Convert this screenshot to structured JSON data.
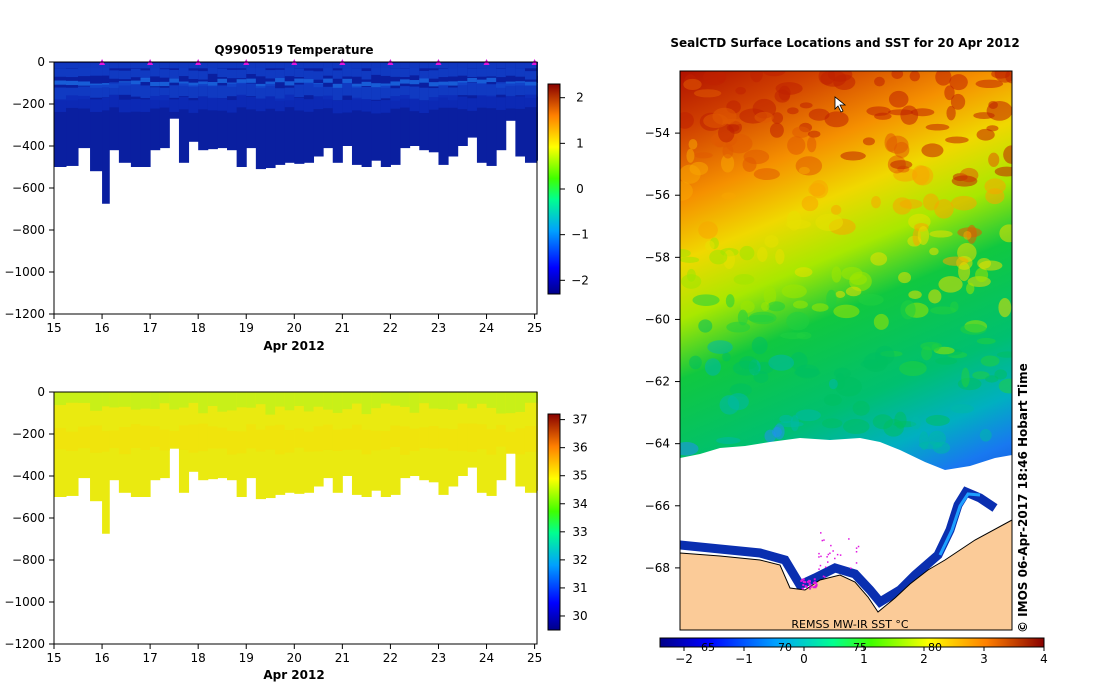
{
  "chart_data": [
    {
      "type": "heatmap",
      "title": "Q9900519  Temperature",
      "xlabel": "Apr 2012",
      "ylabel": "",
      "x_ticks": [
        "15",
        "16",
        "17",
        "18",
        "19",
        "20",
        "21",
        "22",
        "23",
        "24",
        "25"
      ],
      "y_ticks": [
        "0",
        "−200",
        "−400",
        "−600",
        "−800",
        "−1000",
        "−1200"
      ],
      "xlim": [
        15,
        25.05
      ],
      "ylim": [
        -1200,
        0
      ],
      "profile_times": [
        15.0,
        15.25,
        15.5,
        15.75,
        16.0,
        16.15,
        16.35,
        16.6,
        16.8,
        17.0,
        17.2,
        17.4,
        17.6,
        17.8,
        18.0,
        18.2,
        18.4,
        18.6,
        18.8,
        19.0,
        19.2,
        19.4,
        19.6,
        19.8,
        20.0,
        20.2,
        20.4,
        20.6,
        20.8,
        21.0,
        21.2,
        21.4,
        21.6,
        21.8,
        22.0,
        22.2,
        22.4,
        22.6,
        22.8,
        23.0,
        23.2,
        23.4,
        23.6,
        23.8,
        24.0,
        24.2,
        24.4,
        24.6,
        24.8,
        25.05
      ],
      "max_depths": [
        500,
        495,
        410,
        520,
        675,
        420,
        480,
        500,
        500,
        420,
        410,
        270,
        480,
        380,
        420,
        415,
        410,
        420,
        500,
        410,
        510,
        505,
        490,
        480,
        485,
        480,
        450,
        410,
        480,
        400,
        490,
        500,
        470,
        500,
        490,
        410,
        400,
        420,
        430,
        490,
        450,
        400,
        360,
        480,
        495,
        420,
        280,
        450,
        480,
        470
      ],
      "surface_markers": [
        16,
        17,
        18,
        19,
        20,
        21,
        22,
        23,
        24,
        25
      ],
      "colorbar": {
        "label": "",
        "ticks": [
          "2",
          "1",
          "0",
          "−1",
          "−2"
        ],
        "min": -2.3,
        "max": 2.3
      }
    },
    {
      "type": "heatmap",
      "title": "",
      "xlabel": "Apr 2012",
      "ylabel": "",
      "x_ticks": [
        "15",
        "16",
        "17",
        "18",
        "19",
        "20",
        "21",
        "22",
        "23",
        "24",
        "25"
      ],
      "y_ticks": [
        "0",
        "−200",
        "−400",
        "−600",
        "−800",
        "−1000",
        "−1200"
      ],
      "xlim": [
        15,
        25.05
      ],
      "ylim": [
        -1200,
        0
      ],
      "values_description_range": [
        34.0,
        34.8
      ],
      "colorbar": {
        "label": "",
        "ticks": [
          "37",
          "36",
          "35",
          "34",
          "33",
          "32",
          "31",
          "30"
        ],
        "min": 29.5,
        "max": 37.2
      }
    },
    {
      "type": "heatmap",
      "title": "SealCTD Surface Locations and SST for 20 Apr 2012",
      "xlabel": "",
      "ylabel": "",
      "x_ticks": [
        "65",
        "70",
        "75",
        "80"
      ],
      "y_ticks": [
        "−54",
        "−56",
        "−58",
        "−60",
        "−62",
        "−64",
        "−66",
        "−68"
      ],
      "ylim": [
        -70,
        -52
      ],
      "colorbar": {
        "label": "REMSS MW-IR SST °C",
        "ticks": [
          "−2",
          "−1",
          "0",
          "1",
          "2",
          "3",
          "4"
        ],
        "min": -2.4,
        "max": 4.0
      },
      "annotation": "© IMOS 06-Apr-2017 18:46 Hobart Time"
    }
  ],
  "colors": {
    "land": "#fbcb98",
    "marker": "#e015e0",
    "coast": "#000000"
  }
}
